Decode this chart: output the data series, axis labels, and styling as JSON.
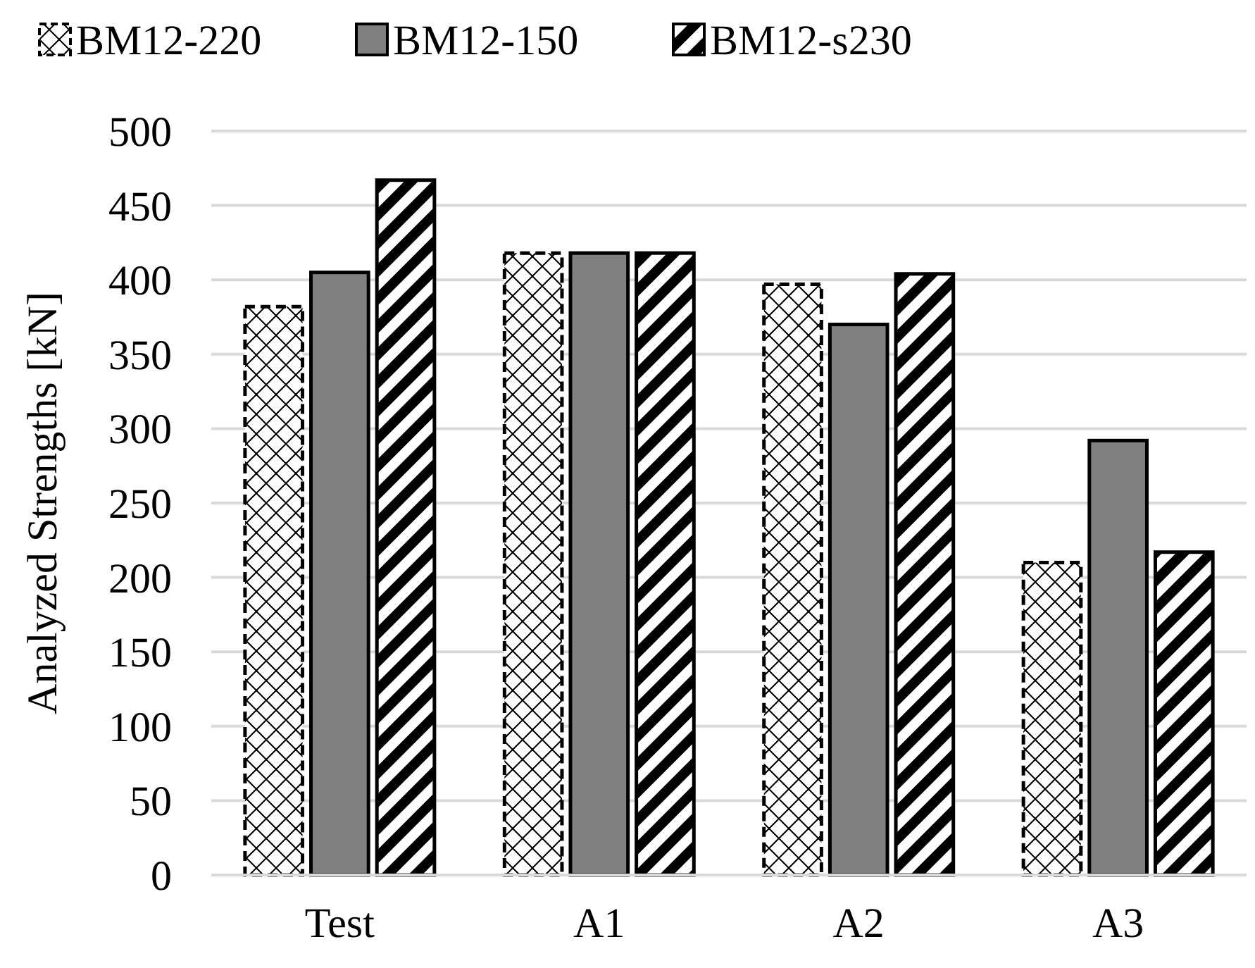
{
  "chart_data": {
    "type": "bar",
    "ylabel": "Analyzed Strengths [kN]",
    "categories": [
      "Test",
      "A1",
      "A2",
      "A3"
    ],
    "series": [
      {
        "name": "BM12-220",
        "color": "#000000",
        "values": [
          382,
          418,
          397,
          210
        ]
      },
      {
        "name": "BM12-150",
        "color": "#808080",
        "values": [
          405,
          418,
          370,
          292
        ]
      },
      {
        "name": "BM12-s230",
        "color": "#000000",
        "values": [
          467,
          418,
          404,
          217
        ]
      }
    ],
    "ylim": [
      0,
      500
    ],
    "yticks": [
      0,
      50,
      100,
      150,
      200,
      250,
      300,
      350,
      400,
      450,
      500
    ],
    "grid": "y",
    "legend": "top"
  }
}
